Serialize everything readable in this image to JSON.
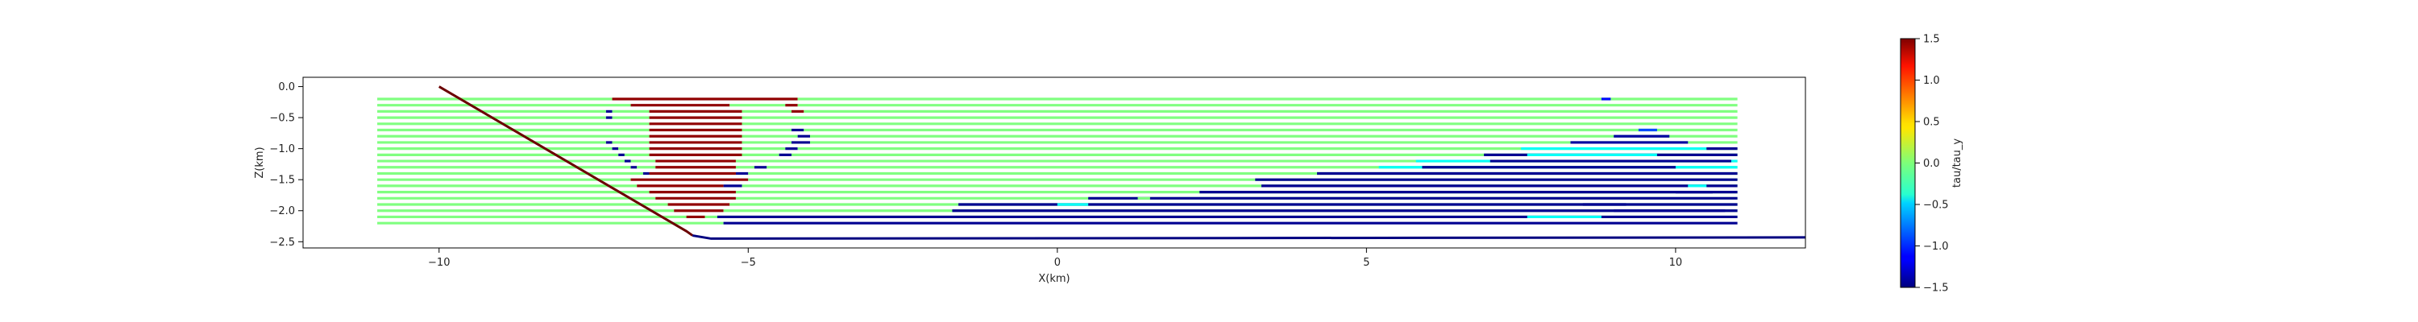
{
  "chart_data": [
    {
      "type": "line",
      "title": "",
      "xlabel": "X(km)",
      "ylabel": "Z(km)",
      "xlim": [
        -12.2,
        12.1
      ],
      "ylim": [
        -2.6,
        0.15
      ],
      "grid": false,
      "xticks": [
        -10,
        -5,
        0,
        5,
        10
      ],
      "yticks": [
        0.0,
        -0.5,
        -1.0,
        -1.5,
        -2.0,
        -2.5
      ],
      "xtick_labels": [
        "−10",
        "−5",
        "0",
        "5",
        "10"
      ],
      "ytick_labels": [
        "0.0",
        "−0.5",
        "−1.0",
        "−1.5",
        "−2.0",
        "−2.5"
      ],
      "fault": {
        "points": [
          [
            -10.0,
            0.0
          ],
          [
            -6.0,
            -2.33
          ],
          [
            -5.9,
            -2.4
          ],
          [
            -5.6,
            -2.45
          ],
          [
            12.1,
            -2.43
          ]
        ],
        "colors": [
          "#6b0000",
          "#000080"
        ]
      },
      "rows": [
        {
          "z": -0.2,
          "segments": [
            [
              -11.0,
              -7.2,
              0.0
            ],
            [
              -7.2,
              -4.2,
              1.45
            ],
            [
              -4.2,
              11.0,
              0.0
            ],
            [
              8.8,
              8.95,
              -1.1
            ]
          ]
        },
        {
          "z": -0.3,
          "segments": [
            [
              -11.0,
              -6.9,
              0.0
            ],
            [
              -6.9,
              -5.3,
              1.45
            ],
            [
              -5.3,
              -4.4,
              0.0
            ],
            [
              -4.4,
              -4.2,
              1.45
            ],
            [
              -4.2,
              11.0,
              0.0
            ]
          ]
        },
        {
          "z": -0.4,
          "segments": [
            [
              -11.0,
              -7.3,
              0.0
            ],
            [
              -7.3,
              -7.2,
              -1.45
            ],
            [
              -7.2,
              -6.6,
              0.0
            ],
            [
              -6.6,
              -5.1,
              1.45
            ],
            [
              -5.1,
              -4.3,
              0.0
            ],
            [
              -4.3,
              -4.1,
              1.45
            ],
            [
              -4.1,
              11.0,
              0.0
            ]
          ]
        },
        {
          "z": -0.5,
          "segments": [
            [
              -11.0,
              -7.3,
              0.0
            ],
            [
              -7.3,
              -7.2,
              -1.45
            ],
            [
              -7.2,
              -6.6,
              0.0
            ],
            [
              -6.6,
              -5.1,
              1.45
            ],
            [
              -5.1,
              11.0,
              0.0
            ]
          ]
        },
        {
          "z": -0.6,
          "segments": [
            [
              -11.0,
              -6.6,
              0.0
            ],
            [
              -6.6,
              -5.1,
              1.45
            ],
            [
              -5.1,
              11.0,
              0.0
            ]
          ]
        },
        {
          "z": -0.7,
          "segments": [
            [
              -11.0,
              -6.6,
              0.0
            ],
            [
              -6.6,
              -5.1,
              1.45
            ],
            [
              -5.1,
              -4.3,
              0.0
            ],
            [
              -4.3,
              -4.1,
              -1.45
            ],
            [
              -4.1,
              11.0,
              0.0
            ],
            [
              9.4,
              9.7,
              -0.9
            ]
          ]
        },
        {
          "z": -0.8,
          "segments": [
            [
              -11.0,
              -6.6,
              0.0
            ],
            [
              -6.6,
              -5.1,
              1.45
            ],
            [
              -5.1,
              -4.2,
              0.0
            ],
            [
              -4.2,
              -4.0,
              -1.45
            ],
            [
              -4.0,
              11.0,
              0.0
            ],
            [
              9.0,
              9.9,
              -1.4
            ]
          ]
        },
        {
          "z": -0.9,
          "segments": [
            [
              -11.0,
              -7.3,
              0.0
            ],
            [
              -7.3,
              -7.2,
              -1.45
            ],
            [
              -7.2,
              -6.6,
              0.0
            ],
            [
              -6.6,
              -5.1,
              1.45
            ],
            [
              -5.1,
              -4.3,
              0.0
            ],
            [
              -4.3,
              -4.0,
              -1.45
            ],
            [
              -4.0,
              11.0,
              0.0
            ],
            [
              8.3,
              10.2,
              -1.4
            ]
          ]
        },
        {
          "z": -1.0,
          "segments": [
            [
              -11.0,
              -7.2,
              0.0
            ],
            [
              -7.2,
              -7.1,
              -1.45
            ],
            [
              -7.1,
              -6.6,
              0.0
            ],
            [
              -6.6,
              -5.1,
              1.45
            ],
            [
              -5.1,
              -4.4,
              0.0
            ],
            [
              -4.4,
              -4.2,
              -1.45
            ],
            [
              -4.2,
              11.0,
              0.0
            ],
            [
              7.5,
              10.5,
              -0.35
            ],
            [
              10.5,
              11.0,
              -1.45
            ]
          ]
        },
        {
          "z": -1.1,
          "segments": [
            [
              -11.0,
              -7.1,
              0.0
            ],
            [
              -7.1,
              -7.0,
              -1.45
            ],
            [
              -7.0,
              -6.6,
              0.0
            ],
            [
              -6.6,
              -5.1,
              1.45
            ],
            [
              -5.1,
              -4.5,
              0.0
            ],
            [
              -4.5,
              -4.3,
              -1.45
            ],
            [
              -4.3,
              11.0,
              0.0
            ],
            [
              6.9,
              11.0,
              -1.45
            ],
            [
              7.6,
              9.7,
              -0.35
            ]
          ]
        },
        {
          "z": -1.2,
          "segments": [
            [
              -11.0,
              -7.0,
              0.0
            ],
            [
              -7.0,
              -6.9,
              -1.45
            ],
            [
              -6.9,
              -6.5,
              0.0
            ],
            [
              -6.5,
              -5.2,
              1.45
            ],
            [
              -5.2,
              11.0,
              0.0
            ],
            [
              5.8,
              11.0,
              -0.35
            ],
            [
              7.0,
              10.9,
              -1.45
            ]
          ]
        },
        {
          "z": -1.3,
          "segments": [
            [
              -11.0,
              -6.9,
              0.0
            ],
            [
              -6.9,
              -6.8,
              -1.45
            ],
            [
              -6.8,
              -6.5,
              0.0
            ],
            [
              -6.5,
              -5.2,
              1.45
            ],
            [
              -5.2,
              -4.9,
              0.0
            ],
            [
              -4.9,
              -4.7,
              -1.45
            ],
            [
              -4.7,
              11.0,
              0.0
            ],
            [
              5.2,
              11.0,
              -0.35
            ],
            [
              5.9,
              10.0,
              -1.45
            ]
          ]
        },
        {
          "z": -1.4,
          "segments": [
            [
              -11.0,
              -6.7,
              0.0
            ],
            [
              -6.7,
              -6.6,
              -1.45
            ],
            [
              -6.6,
              -5.2,
              1.45
            ],
            [
              -5.2,
              -5.0,
              -1.45
            ],
            [
              -5.0,
              11.0,
              0.0
            ],
            [
              4.2,
              11.0,
              -1.45
            ]
          ]
        },
        {
          "z": -1.5,
          "segments": [
            [
              -11.0,
              -6.9,
              0.0
            ],
            [
              -6.9,
              -5.0,
              1.45
            ],
            [
              -5.0,
              11.0,
              0.0
            ],
            [
              3.2,
              11.0,
              -1.45
            ]
          ]
        },
        {
          "z": -1.6,
          "segments": [
            [
              -11.0,
              -6.8,
              0.0
            ],
            [
              -6.8,
              -5.4,
              1.45
            ],
            [
              -5.4,
              -5.1,
              -1.45
            ],
            [
              -5.1,
              11.0,
              0.0
            ],
            [
              3.3,
              11.0,
              -1.45
            ],
            [
              10.2,
              10.5,
              -0.35
            ]
          ]
        },
        {
          "z": -1.7,
          "segments": [
            [
              -11.0,
              -6.6,
              0.0
            ],
            [
              -6.6,
              -5.2,
              1.45
            ],
            [
              -5.2,
              11.0,
              0.0
            ],
            [
              2.3,
              11.0,
              -1.45
            ],
            [
              10.0,
              10.6,
              -1.45
            ]
          ]
        },
        {
          "z": -1.8,
          "segments": [
            [
              -11.0,
              -6.5,
              0.0
            ],
            [
              -6.5,
              -5.2,
              1.45
            ],
            [
              -5.2,
              11.0,
              0.0
            ],
            [
              0.5,
              11.0,
              -1.45
            ],
            [
              1.3,
              1.5,
              0.0
            ]
          ]
        },
        {
          "z": -1.9,
          "segments": [
            [
              -11.0,
              -6.3,
              0.0
            ],
            [
              -6.3,
              -5.3,
              1.45
            ],
            [
              -5.3,
              11.0,
              0.0
            ],
            [
              -1.6,
              11.0,
              -1.45
            ],
            [
              0.0,
              0.5,
              -0.35
            ],
            [
              8.5,
              9.2,
              -1.45
            ]
          ]
        },
        {
          "z": -2.0,
          "segments": [
            [
              -11.0,
              -6.2,
              0.0
            ],
            [
              -6.2,
              -5.4,
              1.45
            ],
            [
              -5.4,
              11.0,
              0.0
            ],
            [
              -1.7,
              11.0,
              -1.45
            ],
            [
              9.0,
              10.8,
              -1.45
            ]
          ]
        },
        {
          "z": -2.1,
          "segments": [
            [
              -11.0,
              -6.0,
              0.0
            ],
            [
              -6.0,
              -5.7,
              1.45
            ],
            [
              -5.7,
              11.0,
              0.0
            ],
            [
              -5.5,
              11.0,
              -1.45
            ],
            [
              7.6,
              8.8,
              -0.35
            ]
          ]
        },
        {
          "z": -2.2,
          "segments": [
            [
              -11.0,
              -6.1,
              0.0
            ],
            [
              -6.1,
              -5.4,
              0.0
            ],
            [
              -5.4,
              11.0,
              -1.45
            ]
          ]
        }
      ]
    },
    {
      "type": "heatmap",
      "title": "",
      "ylabel": "tau/tau_y",
      "colormap": "jet",
      "vmin": -1.5,
      "vmax": 1.5,
      "ticks": [
        1.5,
        1.0,
        0.5,
        0.0,
        -0.5,
        -1.0,
        -1.5
      ],
      "tick_labels": [
        "1.5",
        "1.0",
        "0.5",
        "0.0",
        "−0.5",
        "−1.0",
        "−1.5"
      ]
    }
  ]
}
